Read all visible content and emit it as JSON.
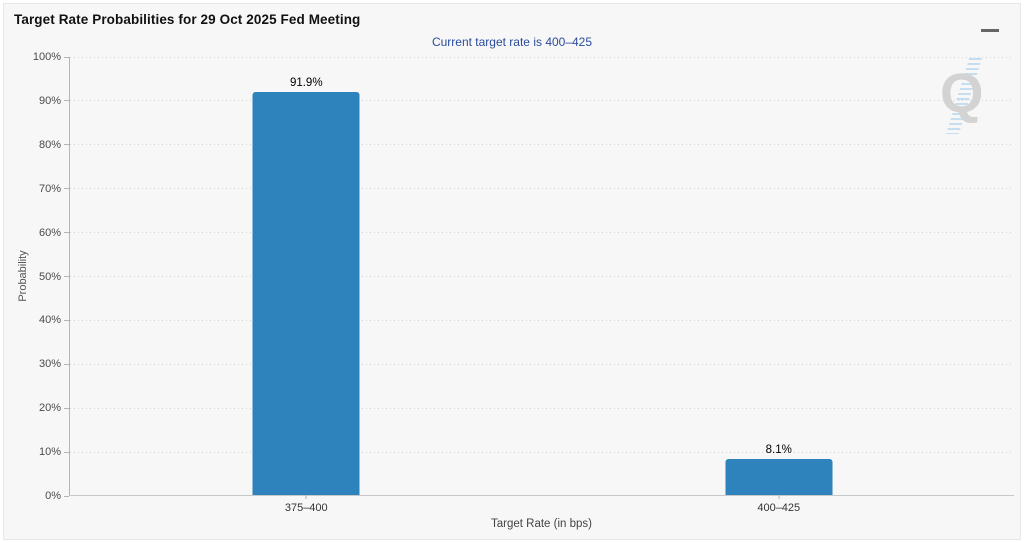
{
  "header": {
    "title": "Target Rate Probabilities for 29 Oct 2025 Fed Meeting",
    "subtitle": "Current target rate is 400–425"
  },
  "icons": {
    "menu": "hamburger-menu-icon"
  },
  "watermark": {
    "letter": "Q"
  },
  "colors": {
    "bar": "#2e83bd",
    "subtitle_text": "#2a4c9b",
    "panel_background": "#f7f7f7",
    "grid_dot": "#d5d5d5"
  },
  "chart_data": {
    "type": "bar",
    "title": "Target Rate Probabilities for 29 Oct 2025 Fed Meeting",
    "subtitle": "Current target rate is 400–425",
    "categories": [
      "375–400",
      "400–425"
    ],
    "values": [
      91.9,
      8.1
    ],
    "value_labels": [
      "91.9%",
      "8.1%"
    ],
    "xlabel": "Target Rate (in bps)",
    "ylabel": "Probability",
    "ylim": [
      0,
      100
    ],
    "ytick_step": 10,
    "ytick_suffix": "%",
    "grid": "dotted horizontal gridlines at every 10%",
    "legend": "none",
    "bar_color": "#2e83bd"
  }
}
